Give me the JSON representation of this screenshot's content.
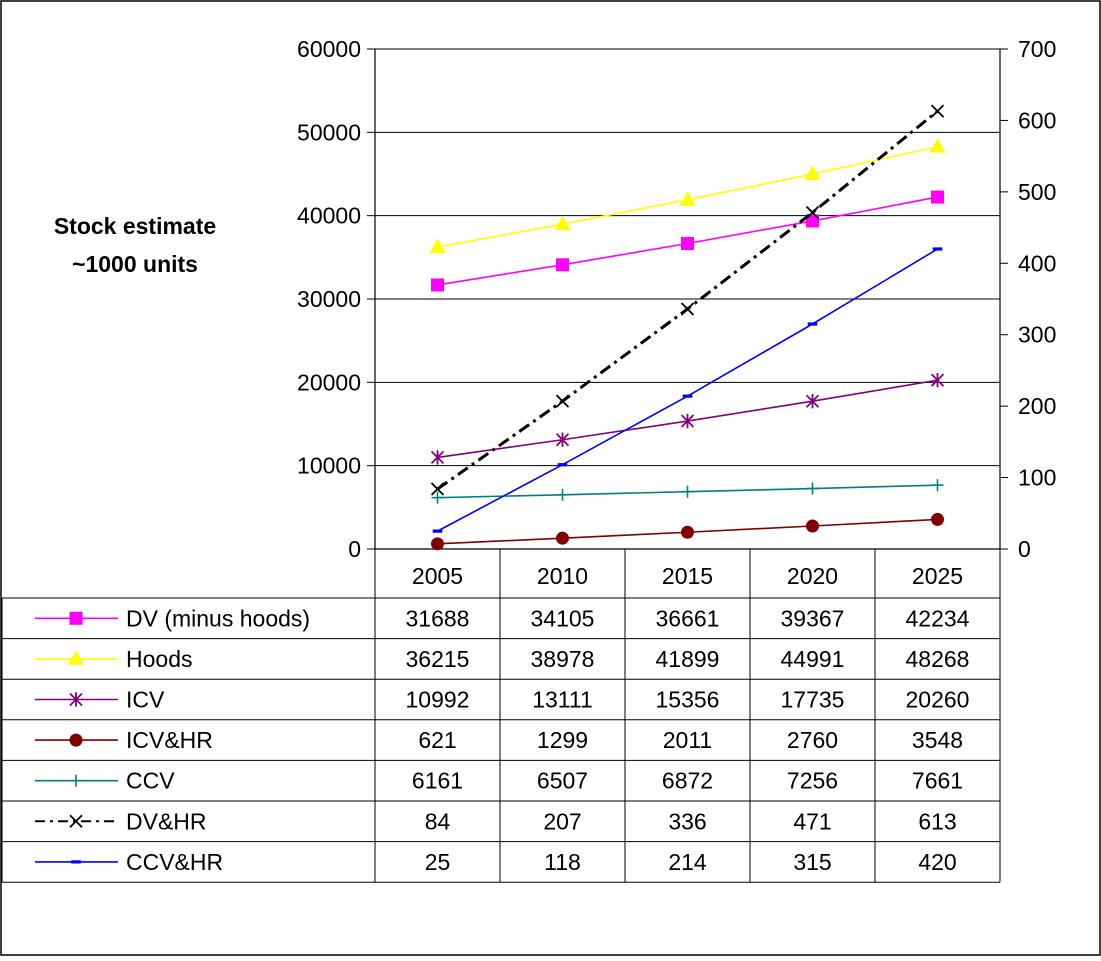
{
  "chart_data": {
    "type": "line",
    "title": "",
    "ylabel_lines": [
      "Stock estimate",
      "~1000 units"
    ],
    "categories": [
      "2005",
      "2010",
      "2015",
      "2020",
      "2025"
    ],
    "ylim_left": [
      0,
      60000
    ],
    "yticks_left": [
      0,
      10000,
      20000,
      30000,
      40000,
      50000,
      60000
    ],
    "ylim_right": [
      0,
      700
    ],
    "yticks_right": [
      0,
      100,
      200,
      300,
      400,
      500,
      600,
      700
    ],
    "grid": true,
    "legend": "data-table",
    "series": [
      {
        "name": "DV (minus hoods)",
        "axis": "left",
        "color": "#ff00ff",
        "marker": "square",
        "dash": "solid",
        "values": [
          31688,
          34105,
          36661,
          39367,
          42234
        ]
      },
      {
        "name": "Hoods",
        "axis": "left",
        "color": "#ffff00",
        "marker": "triangle",
        "dash": "solid",
        "values": [
          36215,
          38978,
          41899,
          44991,
          48268
        ]
      },
      {
        "name": "ICV",
        "axis": "left",
        "color": "#800080",
        "marker": "asterisk",
        "dash": "solid",
        "values": [
          10992,
          13111,
          15356,
          17735,
          20260
        ]
      },
      {
        "name": "ICV&HR",
        "axis": "left",
        "color": "#800000",
        "marker": "circle",
        "dash": "solid",
        "values": [
          621,
          1299,
          2011,
          2760,
          3548
        ]
      },
      {
        "name": "CCV",
        "axis": "left",
        "color": "#008080",
        "marker": "plus",
        "dash": "solid",
        "values": [
          6161,
          6507,
          6872,
          7256,
          7661
        ]
      },
      {
        "name": "DV&HR",
        "axis": "right",
        "color": "#000000",
        "marker": "x",
        "dash": "dashdot",
        "values": [
          84,
          207,
          336,
          471,
          613
        ]
      },
      {
        "name": "CCV&HR",
        "axis": "right",
        "color": "#0000ff",
        "marker": "dash",
        "dash": "solid",
        "values": [
          25,
          118,
          214,
          315,
          420
        ]
      }
    ]
  }
}
